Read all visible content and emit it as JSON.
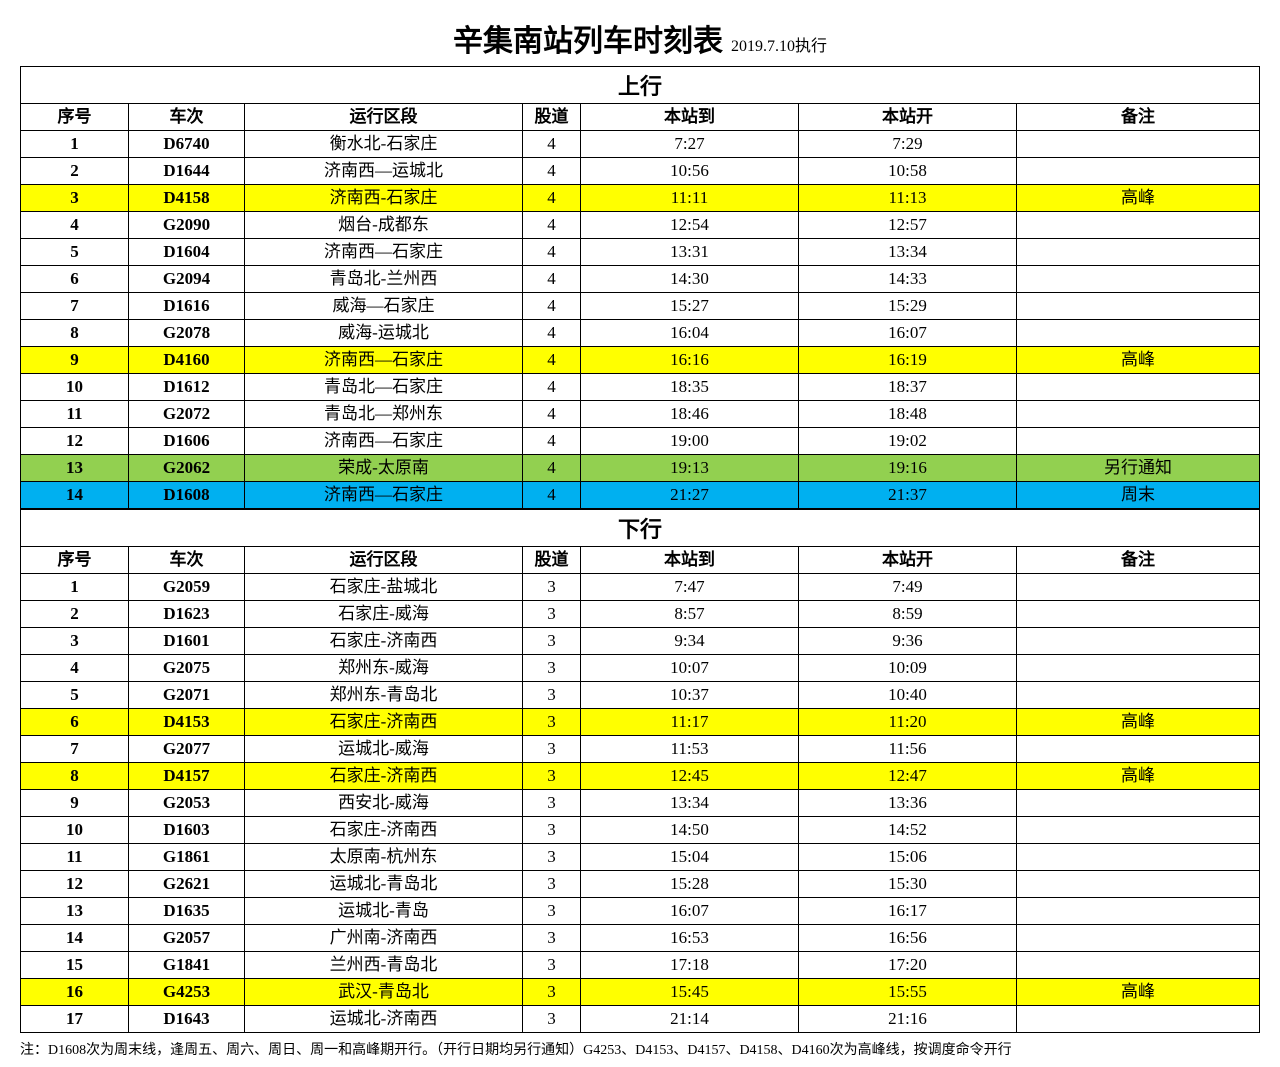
{
  "title": "辛集南站列车时刻表",
  "subtitle": "2019.7.10执行",
  "colors": {
    "highlight_yellow": "#ffff00",
    "highlight_green": "#92d050",
    "highlight_blue": "#00b0f0",
    "default_bg": "#ffffff",
    "border": "#000000"
  },
  "columns": [
    "序号",
    "车次",
    "运行区段",
    "股道",
    "本站到",
    "本站开",
    "备注"
  ],
  "sections": [
    {
      "heading": "上行",
      "rows": [
        {
          "seq": "1",
          "train": "D6740",
          "route": "衡水北-石家庄",
          "track": "4",
          "arr": "7:27",
          "dep": "7:29",
          "notes": "",
          "bg": "#ffffff"
        },
        {
          "seq": "2",
          "train": "D1644",
          "route": "济南西—运城北",
          "track": "4",
          "arr": "10:56",
          "dep": "10:58",
          "notes": "",
          "bg": "#ffffff"
        },
        {
          "seq": "3",
          "train": "D4158",
          "route": "济南西-石家庄",
          "track": "4",
          "arr": "11:11",
          "dep": "11:13",
          "notes": "高峰",
          "bg": "#ffff00"
        },
        {
          "seq": "4",
          "train": "G2090",
          "route": "烟台-成都东",
          "track": "4",
          "arr": "12:54",
          "dep": "12:57",
          "notes": "",
          "bg": "#ffffff"
        },
        {
          "seq": "5",
          "train": "D1604",
          "route": "济南西—石家庄",
          "track": "4",
          "arr": "13:31",
          "dep": "13:34",
          "notes": "",
          "bg": "#ffffff"
        },
        {
          "seq": "6",
          "train": "G2094",
          "route": "青岛北-兰州西",
          "track": "4",
          "arr": "14:30",
          "dep": "14:33",
          "notes": "",
          "bg": "#ffffff"
        },
        {
          "seq": "7",
          "train": "D1616",
          "route": "威海—石家庄",
          "track": "4",
          "arr": "15:27",
          "dep": "15:29",
          "notes": "",
          "bg": "#ffffff"
        },
        {
          "seq": "8",
          "train": "G2078",
          "route": "威海-运城北",
          "track": "4",
          "arr": "16:04",
          "dep": "16:07",
          "notes": "",
          "bg": "#ffffff"
        },
        {
          "seq": "9",
          "train": "D4160",
          "route": "济南西—石家庄",
          "track": "4",
          "arr": "16:16",
          "dep": "16:19",
          "notes": "高峰",
          "bg": "#ffff00"
        },
        {
          "seq": "10",
          "train": "D1612",
          "route": "青岛北—石家庄",
          "track": "4",
          "arr": "18:35",
          "dep": "18:37",
          "notes": "",
          "bg": "#ffffff"
        },
        {
          "seq": "11",
          "train": "G2072",
          "route": "青岛北—郑州东",
          "track": "4",
          "arr": "18:46",
          "dep": "18:48",
          "notes": "",
          "bg": "#ffffff"
        },
        {
          "seq": "12",
          "train": "D1606",
          "route": "济南西—石家庄",
          "track": "4",
          "arr": "19:00",
          "dep": "19:02",
          "notes": "",
          "bg": "#ffffff"
        },
        {
          "seq": "13",
          "train": "G2062",
          "route": "荣成-太原南",
          "track": "4",
          "arr": "19:13",
          "dep": "19:16",
          "notes": "另行通知",
          "bg": "#92d050"
        },
        {
          "seq": "14",
          "train": "D1608",
          "route": "济南西—石家庄",
          "track": "4",
          "arr": "21:27",
          "dep": "21:37",
          "notes": "周末",
          "bg": "#00b0f0"
        }
      ]
    },
    {
      "heading": "下行",
      "rows": [
        {
          "seq": "1",
          "train": "G2059",
          "route": "石家庄-盐城北",
          "track": "3",
          "arr": "7:47",
          "dep": "7:49",
          "notes": "",
          "bg": "#ffffff"
        },
        {
          "seq": "2",
          "train": "D1623",
          "route": "石家庄-威海",
          "track": "3",
          "arr": "8:57",
          "dep": "8:59",
          "notes": "",
          "bg": "#ffffff"
        },
        {
          "seq": "3",
          "train": "D1601",
          "route": "石家庄-济南西",
          "track": "3",
          "arr": "9:34",
          "dep": "9:36",
          "notes": "",
          "bg": "#ffffff"
        },
        {
          "seq": "4",
          "train": "G2075",
          "route": "郑州东-威海",
          "track": "3",
          "arr": "10:07",
          "dep": "10:09",
          "notes": "",
          "bg": "#ffffff"
        },
        {
          "seq": "5",
          "train": "G2071",
          "route": "郑州东-青岛北",
          "track": "3",
          "arr": "10:37",
          "dep": "10:40",
          "notes": "",
          "bg": "#ffffff"
        },
        {
          "seq": "6",
          "train": "D4153",
          "route": "石家庄-济南西",
          "track": "3",
          "arr": "11:17",
          "dep": "11:20",
          "notes": "高峰",
          "bg": "#ffff00"
        },
        {
          "seq": "7",
          "train": "G2077",
          "route": "运城北-威海",
          "track": "3",
          "arr": "11:53",
          "dep": "11:56",
          "notes": "",
          "bg": "#ffffff"
        },
        {
          "seq": "8",
          "train": "D4157",
          "route": "石家庄-济南西",
          "track": "3",
          "arr": "12:45",
          "dep": "12:47",
          "notes": "高峰",
          "bg": "#ffff00"
        },
        {
          "seq": "9",
          "train": "G2053",
          "route": "西安北-威海",
          "track": "3",
          "arr": "13:34",
          "dep": "13:36",
          "notes": "",
          "bg": "#ffffff"
        },
        {
          "seq": "10",
          "train": "D1603",
          "route": "石家庄-济南西",
          "track": "3",
          "arr": "14:50",
          "dep": "14:52",
          "notes": "",
          "bg": "#ffffff"
        },
        {
          "seq": "11",
          "train": "G1861",
          "route": "太原南-杭州东",
          "track": "3",
          "arr": "15:04",
          "dep": "15:06",
          "notes": "",
          "bg": "#ffffff"
        },
        {
          "seq": "12",
          "train": "G2621",
          "route": "运城北-青岛北",
          "track": "3",
          "arr": "15:28",
          "dep": "15:30",
          "notes": "",
          "bg": "#ffffff"
        },
        {
          "seq": "13",
          "train": "D1635",
          "route": "运城北-青岛",
          "track": "3",
          "arr": "16:07",
          "dep": "16:17",
          "notes": "",
          "bg": "#ffffff"
        },
        {
          "seq": "14",
          "train": "G2057",
          "route": "广州南-济南西",
          "track": "3",
          "arr": "16:53",
          "dep": "16:56",
          "notes": "",
          "bg": "#ffffff"
        },
        {
          "seq": "15",
          "train": "G1841",
          "route": "兰州西-青岛北",
          "track": "3",
          "arr": "17:18",
          "dep": "17:20",
          "notes": "",
          "bg": "#ffffff"
        },
        {
          "seq": "16",
          "train": "G4253",
          "route": "武汉-青岛北",
          "track": "3",
          "arr": "15:45",
          "dep": "15:55",
          "notes": "高峰",
          "bg": "#ffff00"
        },
        {
          "seq": "17",
          "train": "D1643",
          "route": "运城北-济南西",
          "track": "3",
          "arr": "21:14",
          "dep": "21:16",
          "notes": "",
          "bg": "#ffffff"
        }
      ]
    }
  ],
  "footer_note": "注：D1608次为周末线，逢周五、周六、周日、周一和高峰期开行。（开行日期均另行通知）G4253、D4153、D4157、D4158、D4160次为高峰线，按调度命令开行"
}
